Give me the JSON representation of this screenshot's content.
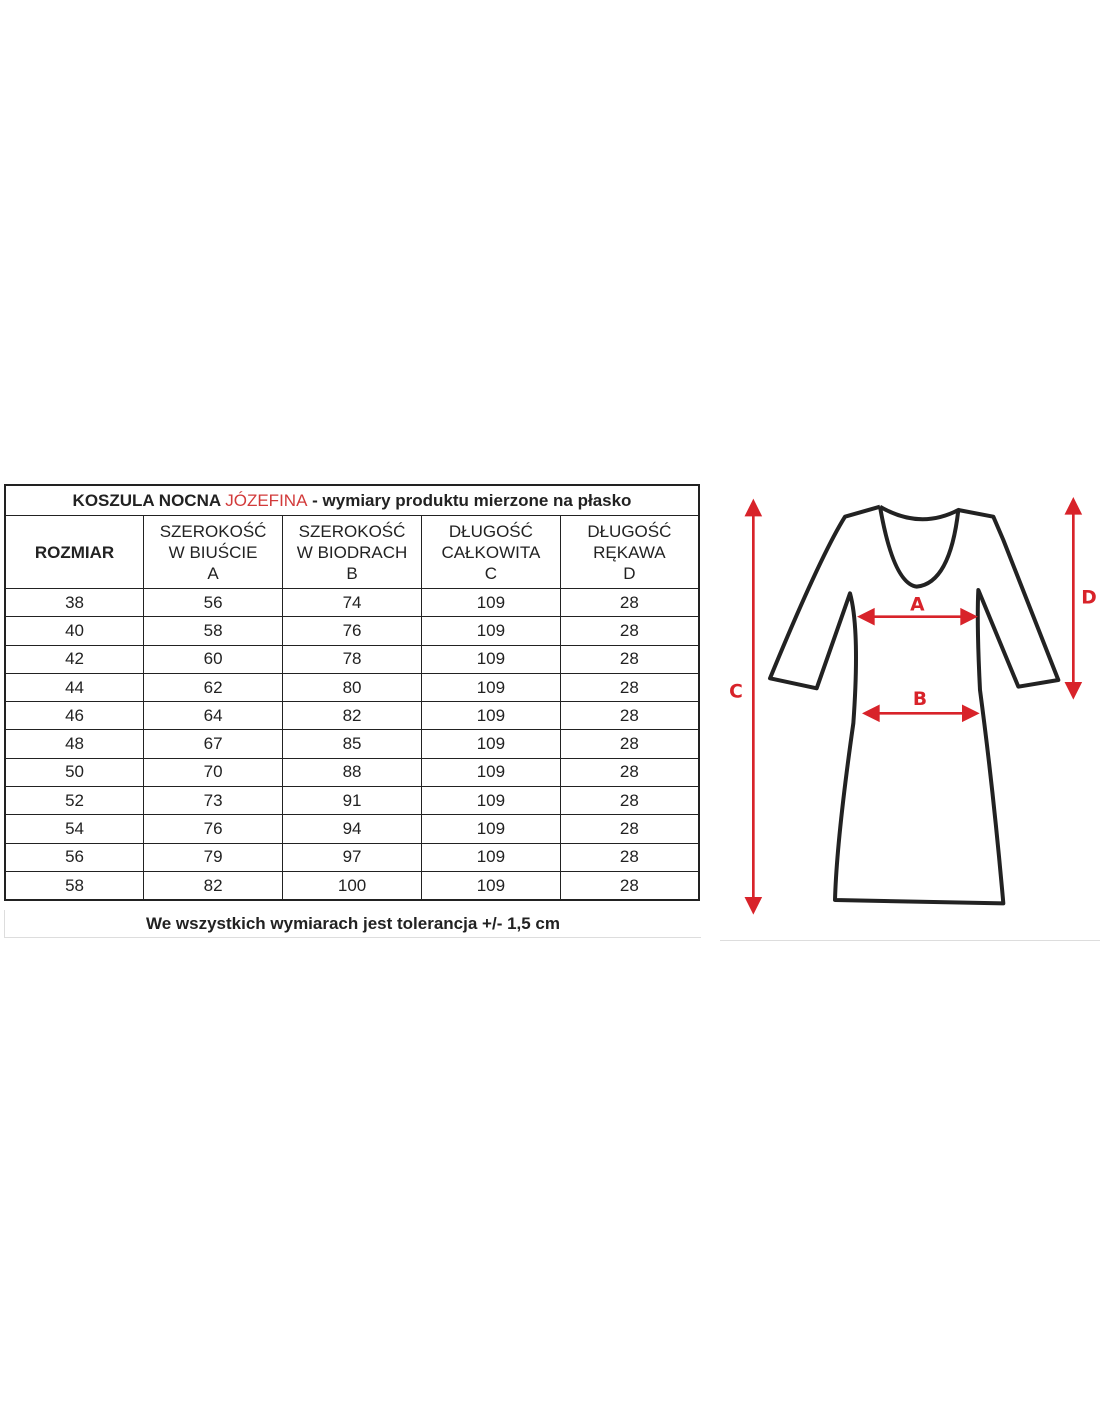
{
  "title": {
    "prefix": "KOSZULA NOCNA",
    "name": "JÓZEFINA",
    "suffix": "- wymiary produktu mierzone na płasko"
  },
  "headers": [
    [
      "ROZMIAR"
    ],
    [
      "SZEROKOŚĆ",
      "W BIUŚCIE",
      "A"
    ],
    [
      "SZEROKOŚĆ",
      "W BIODRACH",
      "B"
    ],
    [
      "DŁUGOŚĆ",
      "CAŁKOWITA",
      "C"
    ],
    [
      "DŁUGOŚĆ",
      "RĘKAWA",
      "D"
    ]
  ],
  "rows": [
    [
      "38",
      "56",
      "74",
      "109",
      "28"
    ],
    [
      "40",
      "58",
      "76",
      "109",
      "28"
    ],
    [
      "42",
      "60",
      "78",
      "109",
      "28"
    ],
    [
      "44",
      "62",
      "80",
      "109",
      "28"
    ],
    [
      "46",
      "64",
      "82",
      "109",
      "28"
    ],
    [
      "48",
      "67",
      "85",
      "109",
      "28"
    ],
    [
      "50",
      "70",
      "88",
      "109",
      "28"
    ],
    [
      "52",
      "73",
      "91",
      "109",
      "28"
    ],
    [
      "54",
      "76",
      "94",
      "109",
      "28"
    ],
    [
      "56",
      "79",
      "97",
      "109",
      "28"
    ],
    [
      "58",
      "82",
      "100",
      "109",
      "28"
    ]
  ],
  "footer": "We wszystkich wymiarach jest tolerancja +/- 1,5 cm",
  "diagram": {
    "labels": {
      "a": "A",
      "b": "B",
      "c": "C",
      "d": "D"
    },
    "arrow_color": "#d8232a",
    "outline_color": "#222222"
  },
  "colors": {
    "accent": "#d23a3a"
  }
}
